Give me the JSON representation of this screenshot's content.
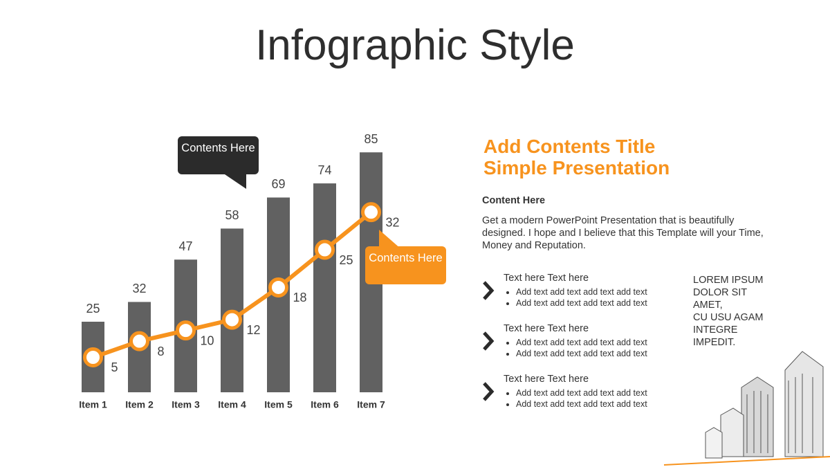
{
  "title": "Infographic Style",
  "chart_data": {
    "type": "bar",
    "categories": [
      "Item 1",
      "Item 2",
      "Item 3",
      "Item 4",
      "Item 5",
      "Item 6",
      "Item 7"
    ],
    "series": [
      {
        "color": "#616161",
        "values": [
          25,
          32,
          47,
          58,
          69,
          74,
          85
        ]
      },
      {
        "type": "line",
        "axis": "y2",
        "color": "#f7931e",
        "values": [
          5,
          8,
          10,
          12,
          18,
          25,
          32
        ]
      }
    ],
    "ylim": [
      0,
      100
    ],
    "y2lim": [
      -1.5,
      51
    ],
    "grid": false,
    "annotations": [
      {
        "text": "Contents Here",
        "color": "#2b2b2b"
      },
      {
        "text": "Contents Here",
        "color": "#f7931e"
      }
    ]
  },
  "panel": {
    "title_lines": [
      "Add Contents Title",
      "Simple Presentation"
    ],
    "subtitle": "Content  Here",
    "paragraph": "Get a modern PowerPoint  Presentation that is beautifully designed. I hope and I believe that this Template will your Time, Money and Reputation.",
    "items": [
      {
        "heading": "Text here Text here",
        "bullets": [
          "Add text add text add text add text",
          "Add text add text add text add text"
        ]
      },
      {
        "heading": "Text here Text here",
        "bullets": [
          "Add text add text add text add text",
          "Add text add text add text add text"
        ]
      },
      {
        "heading": "Text here Text here",
        "bullets": [
          "Add text add text add text add text",
          "Add text add text add text add text"
        ]
      }
    ],
    "side_lines": [
      "LOREM IPSUM",
      "DOLOR SIT",
      "AMET,",
      "CU USU AGAM",
      "INTEGRE",
      "IMPEDIT."
    ]
  }
}
